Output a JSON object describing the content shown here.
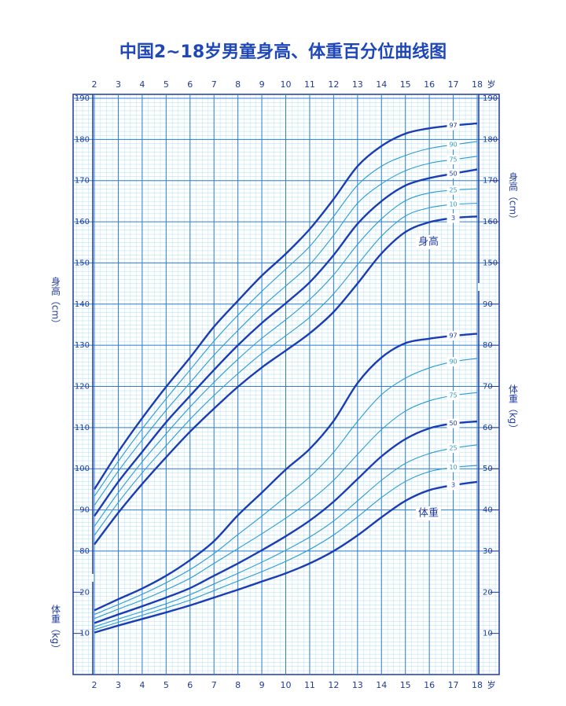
{
  "chart_data": {
    "type": "line",
    "title": "中国2~18岁男童身高、体重百分位曲线图",
    "x": [
      2,
      3,
      4,
      5,
      6,
      7,
      8,
      9,
      10,
      11,
      12,
      13,
      14,
      15,
      16,
      17,
      18
    ],
    "xlim": [
      2,
      18
    ],
    "xticks": [
      2,
      3,
      4,
      5,
      6,
      7,
      8,
      9,
      10,
      11,
      12,
      13,
      14,
      15,
      16,
      17,
      18
    ],
    "x_unit": "岁",
    "ylim": [
      50,
      190
    ],
    "yticks": [
      80,
      90,
      100,
      110,
      120,
      130,
      140,
      150,
      160,
      170,
      180,
      190
    ],
    "y_right_ticks": [
      150,
      160,
      170,
      180,
      190
    ],
    "ylabel": "身高（cm）",
    "y2lim": [
      0,
      140
    ],
    "y2ticks": [
      10,
      20,
      30,
      40,
      50,
      60,
      70,
      80,
      90
    ],
    "y2_left_ticks": [
      10,
      20
    ],
    "y2label": "体重（kg）",
    "annotations": [
      "身高",
      "体重"
    ],
    "grid": true,
    "series": [
      {
        "name": "97",
        "color": "#1b3db3",
        "linewidth": 2.4,
        "values": [
          95.0,
          104.1,
          112.3,
          119.9,
          127.0,
          134.5,
          140.8,
          146.9,
          152.2,
          158.2,
          165.5,
          173.5,
          178.4,
          181.4,
          182.7,
          183.4,
          183.9
        ]
      },
      {
        "name": "90",
        "color": "#2a9bd4",
        "linewidth": 1.1,
        "values": [
          93.3,
          101.8,
          109.7,
          117.0,
          124.0,
          131.0,
          137.3,
          143.1,
          148.5,
          154.0,
          161.3,
          168.9,
          173.5,
          176.1,
          177.8,
          178.7,
          179.5
        ]
      },
      {
        "name": "75",
        "color": "#2a9bd4",
        "linewidth": 1.1,
        "values": [
          91.1,
          99.4,
          107.0,
          114.2,
          120.9,
          127.6,
          133.6,
          139.3,
          144.4,
          149.6,
          156.7,
          164.5,
          169.2,
          172.4,
          174.2,
          175.1,
          175.9
        ]
      },
      {
        "name": "50",
        "color": "#1b3db3",
        "linewidth": 2.4,
        "values": [
          88.5,
          96.8,
          104.1,
          111.3,
          117.7,
          124.0,
          130.0,
          135.4,
          140.2,
          145.3,
          151.9,
          159.5,
          165.0,
          168.8,
          170.6,
          171.7,
          172.7
        ]
      },
      {
        "name": "25",
        "color": "#2a9bd4",
        "linewidth": 1.1,
        "values": [
          86.0,
          94.2,
          101.7,
          108.5,
          115.0,
          121.0,
          126.6,
          131.7,
          136.2,
          141.1,
          147.1,
          154.5,
          160.7,
          165.1,
          167.0,
          167.7,
          168.0
        ]
      },
      {
        "name": "10",
        "color": "#2a9bd4",
        "linewidth": 1.1,
        "values": [
          83.8,
          91.8,
          99.0,
          105.6,
          112.0,
          117.8,
          123.1,
          128.0,
          132.3,
          136.8,
          142.5,
          149.6,
          156.5,
          161.4,
          163.4,
          164.2,
          164.5
        ]
      },
      {
        "name": "3",
        "color": "#1b3db3",
        "linewidth": 2.4,
        "values": [
          81.6,
          89.3,
          96.3,
          102.8,
          109.0,
          114.6,
          119.9,
          124.6,
          128.7,
          132.9,
          138.1,
          145.0,
          152.3,
          157.5,
          159.9,
          160.9,
          161.3
        ]
      },
      {
        "name": "97",
        "color": "#1b3db3",
        "linewidth": 2.4,
        "axis": "y2",
        "values": [
          15.6,
          18.3,
          20.9,
          24.0,
          27.8,
          32.4,
          38.7,
          44.2,
          49.8,
          54.8,
          61.6,
          70.8,
          77.0,
          80.5,
          81.6,
          82.3,
          82.8
        ]
      },
      {
        "name": "90",
        "color": "#2a9bd4",
        "linewidth": 1.1,
        "axis": "y2",
        "values": [
          14.6,
          17.0,
          19.5,
          22.3,
          25.5,
          29.4,
          34.0,
          38.5,
          43.2,
          48.0,
          54.0,
          61.5,
          68.0,
          72.0,
          74.5,
          76.0,
          76.8
        ]
      },
      {
        "name": "75",
        "color": "#2a9bd4",
        "linewidth": 1.1,
        "axis": "y2",
        "values": [
          13.6,
          15.9,
          18.1,
          20.6,
          23.4,
          27.0,
          30.6,
          34.2,
          38.0,
          42.2,
          47.2,
          53.5,
          59.5,
          64.0,
          66.5,
          67.8,
          68.5
        ]
      },
      {
        "name": "50",
        "color": "#1b3db3",
        "linewidth": 2.4,
        "axis": "y2",
        "values": [
          12.5,
          14.6,
          16.6,
          18.7,
          21.0,
          24.0,
          27.0,
          30.2,
          33.6,
          37.4,
          42.0,
          47.5,
          53.0,
          57.2,
          59.8,
          61.0,
          61.5
        ]
      },
      {
        "name": "25",
        "color": "#2a9bd4",
        "linewidth": 1.1,
        "axis": "y2",
        "values": [
          11.6,
          13.5,
          15.3,
          17.2,
          19.4,
          22.0,
          24.6,
          27.3,
          30.2,
          33.4,
          37.3,
          42.2,
          47.2,
          51.3,
          53.7,
          55.0,
          55.8
        ]
      },
      {
        "name": "10",
        "color": "#2a9bd4",
        "linewidth": 1.1,
        "axis": "y2",
        "values": [
          10.9,
          12.7,
          14.4,
          16.2,
          18.1,
          20.4,
          22.7,
          25.0,
          27.5,
          30.4,
          33.9,
          38.3,
          43.0,
          46.9,
          49.3,
          50.3,
          50.8
        ]
      },
      {
        "name": "3",
        "color": "#1b3db3",
        "linewidth": 2.4,
        "axis": "y2",
        "values": [
          10.2,
          11.9,
          13.5,
          15.1,
          16.8,
          18.7,
          20.6,
          22.6,
          24.6,
          27.0,
          30.0,
          33.8,
          38.2,
          42.2,
          44.8,
          46.0,
          46.8
        ]
      }
    ]
  }
}
